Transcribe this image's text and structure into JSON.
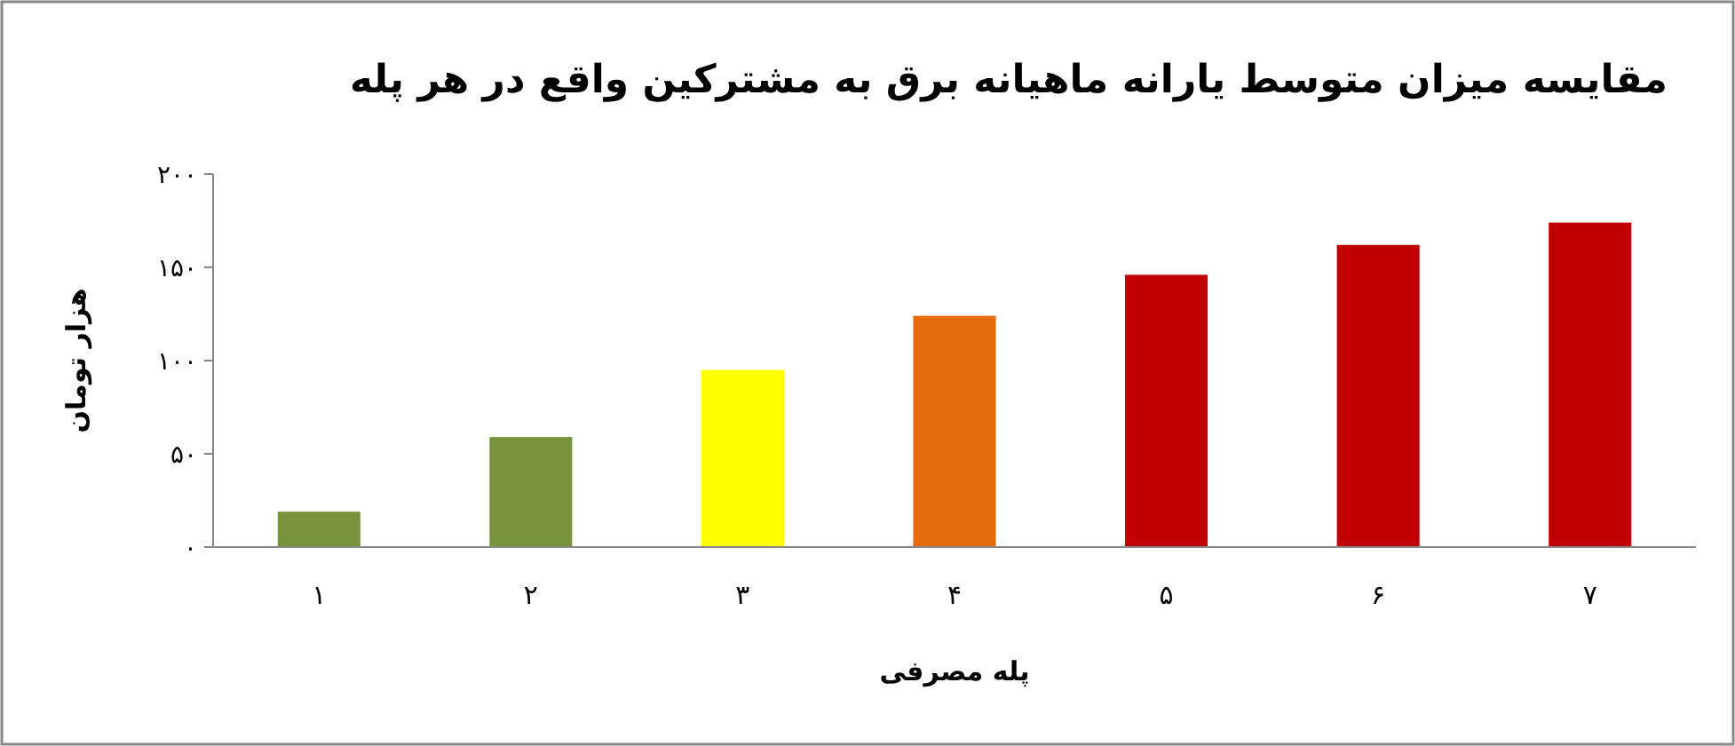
{
  "chart_data": {
    "type": "bar",
    "title": "مقایسه میزان متوسط یارانه ماهیانه برق به مشترکین واقع در هر پله",
    "xlabel": "پله مصرفی",
    "ylabel": "هزار تومان",
    "categories": [
      "۱",
      "۲",
      "۳",
      "۴",
      "۵",
      "۶",
      "۷"
    ],
    "values": [
      19,
      59,
      95,
      124,
      146,
      162,
      174
    ],
    "colors": [
      "#77933c",
      "#77933c",
      "#ffff00",
      "#e46c0a",
      "#c00000",
      "#c00000",
      "#c00000"
    ],
    "ylim": [
      0,
      200
    ],
    "yticks": [
      {
        "value": 0,
        "label": "۰"
      },
      {
        "value": 50,
        "label": "۵۰"
      },
      {
        "value": 100,
        "label": "۱۰۰"
      },
      {
        "value": 150,
        "label": "۱۵۰"
      },
      {
        "value": 200,
        "label": "۲۰۰"
      }
    ]
  }
}
